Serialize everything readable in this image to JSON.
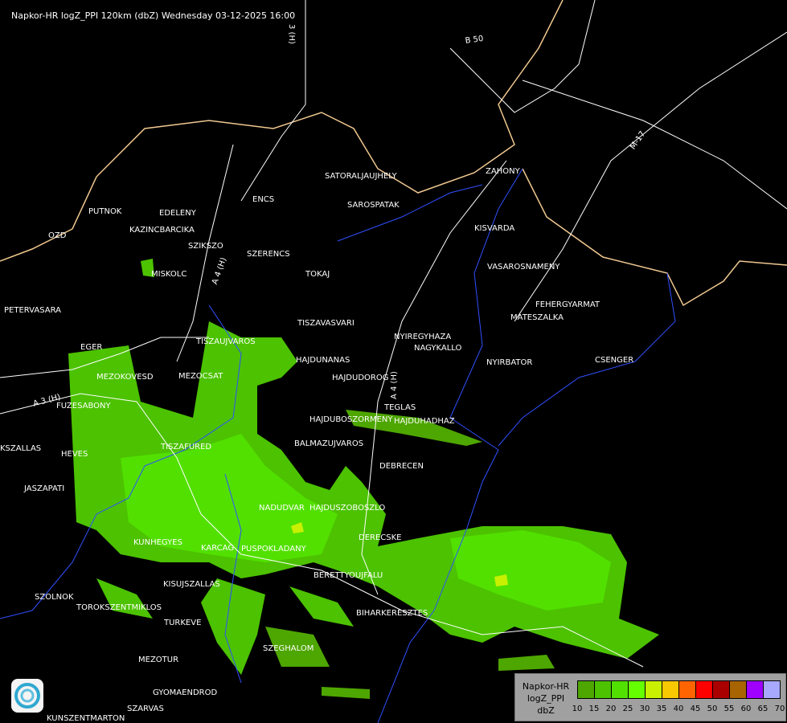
{
  "header": {
    "title": "Napkor-HR logZ_PPI 120km (dbZ) Wednesday 03-12-2025 16:00"
  },
  "map": {
    "road_labels": [
      "B 50",
      "M-17",
      "A 4 (H)",
      "A 3 (H)",
      "A 4 (H)",
      "3 (H)"
    ],
    "cities": [
      "SATORALJAUJHELY",
      "ZAHONY",
      "SAROSPATAK",
      "PUTNOK",
      "EDELENY",
      "ENCS",
      "KAZINCBARCIKA",
      "OZD",
      "SZIKSZO",
      "SZERENCS",
      "KISVARDA",
      "TOKAJ",
      "VASAROSNAMENY",
      "MISKOLC",
      "PETERVASARA",
      "FEHERGYARMAT",
      "MATESZALKA",
      "TISZAVASVARI",
      "NYIREGYHAZA",
      "TISZAUJVAROS",
      "NAGYKALLO",
      "EGER",
      "HAJDUNANAS",
      "NYIRBATOR",
      "CSENGER",
      "MEZOKOVESD",
      "MEZOCSAT",
      "HAJDUDOROG",
      "FUZESABONY",
      "TEGLAS",
      "HAJDUBOSZORMENY",
      "HAJDUHADHAZ",
      "KSZALLAS",
      "HEVES",
      "TISZAFURED",
      "BALMAZUJVAROS",
      "DEBRECEN",
      "JASZAPATI",
      "NADUDVAR",
      "HAJDUSZOBOSZLO",
      "KUNHEGYES",
      "DERECSKE",
      "KARCAG",
      "KISUJSZALLAS",
      "PUSPOKLADANY",
      "BERETTYOUJFALU",
      "SZOLNOK",
      "TOROKSZENTMIKLOS",
      "TURKEVE",
      "BIHARKERESZTES",
      "SZEGHALOM",
      "MEZOTUR",
      "GYOMAENDROD",
      "SZARVAS",
      "KUNSZENTMARTON"
    ]
  },
  "legend": {
    "title_lines": [
      "Napkor-HR",
      "logZ_PPI",
      "dbZ"
    ],
    "colors": [
      "#4ea600",
      "#4cc200",
      "#52e000",
      "#66ff00",
      "#c8f000",
      "#f8c800",
      "#ff6400",
      "#ff0000",
      "#aa0000",
      "#a86400",
      "#a000ff",
      "#a8a8ff"
    ],
    "ticks": [
      "10",
      "15",
      "20",
      "25",
      "30",
      "35",
      "40",
      "45",
      "50",
      "55",
      "60",
      "65",
      "70"
    ]
  },
  "colors": {
    "border": "#f0c890",
    "river": "#3050ff",
    "road": "#ffffff"
  }
}
